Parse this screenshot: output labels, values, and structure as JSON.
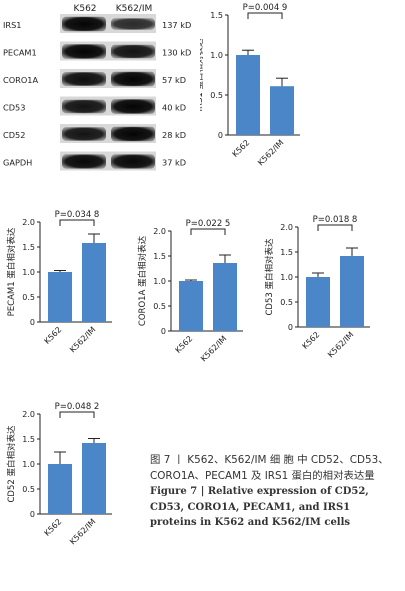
{
  "blot": {
    "lane_labels": [
      "K562",
      "K562/IM"
    ],
    "rows": [
      {
        "protein": "IRS1",
        "size": "137 kD",
        "intensity": [
          0.95,
          0.55
        ]
      },
      {
        "protein": "PECAM1",
        "size": "130 kD",
        "intensity": [
          0.95,
          0.8
        ]
      },
      {
        "protein": "CORO1A",
        "size": "57 kD",
        "intensity": [
          0.85,
          0.95
        ]
      },
      {
        "protein": "CD53",
        "size": "40 kD",
        "intensity": [
          0.8,
          0.95
        ]
      },
      {
        "protein": "CD52",
        "size": "28 kD",
        "intensity": [
          0.8,
          0.95
        ]
      },
      {
        "protein": "GAPDH",
        "size": "37 kD",
        "intensity": [
          0.9,
          0.9
        ]
      }
    ]
  },
  "chart_data": [
    {
      "type": "bar",
      "categories": [
        "K562",
        "K562/IM"
      ],
      "values": [
        1.0,
        0.61
      ],
      "errors": [
        0.06,
        0.1
      ],
      "ylabel": "IRS1 蛋白相对表达",
      "p_label": "P=0.004 9",
      "ylim": [
        0,
        1.5
      ],
      "yticks": [
        "0",
        "0.5",
        "1.0",
        "1.5"
      ]
    },
    {
      "type": "bar",
      "categories": [
        "K562",
        "K562/IM"
      ],
      "values": [
        1.0,
        1.58
      ],
      "errors": [
        0.03,
        0.18
      ],
      "ylabel": "PECAM1 蛋白相对表达",
      "p_label": "P=0.034 8",
      "ylim": [
        0,
        2.0
      ],
      "yticks": [
        "0",
        "0.5",
        "1.0",
        "1.5",
        "2.0"
      ]
    },
    {
      "type": "bar",
      "categories": [
        "K562",
        "K562/IM"
      ],
      "values": [
        1.0,
        1.36
      ],
      "errors": [
        0.02,
        0.16
      ],
      "ylabel": "CORO1A 蛋白相对表达",
      "p_label": "P=0.022 5",
      "ylim": [
        0,
        2.0
      ],
      "yticks": [
        "0",
        "0.5",
        "1.0",
        "1.5",
        "2.0"
      ]
    },
    {
      "type": "bar",
      "categories": [
        "K562",
        "K562/IM"
      ],
      "values": [
        1.0,
        1.42
      ],
      "errors": [
        0.08,
        0.16
      ],
      "ylabel": "CD53 蛋白相对表达",
      "p_label": "P=0.018 8",
      "ylim": [
        0,
        2.0
      ],
      "yticks": [
        "0",
        "0.5",
        "1.0",
        "1.5",
        "2.0"
      ]
    },
    {
      "type": "bar",
      "categories": [
        "K562",
        "K562/IM"
      ],
      "values": [
        1.0,
        1.42
      ],
      "errors": [
        0.24,
        0.09
      ],
      "ylabel": "CD52 蛋白相对表达",
      "p_label": "P=0.048 2",
      "ylim": [
        0,
        2.0
      ],
      "yticks": [
        "0",
        "0.5",
        "1.0",
        "1.5",
        "2.0"
      ]
    }
  ],
  "colors": {
    "bar": "#4a86c8",
    "axis": "#222222"
  },
  "caption": {
    "cn": "图 7 丨 K562、K562/IM 细 胞 中 CD52、CD53、CORO1A、PECAM1 及 IRS1 蛋白的相对表达量",
    "en": "Figure 7 | Relative expression of CD52, CD53, CORO1A, PECAM1, and IRS1 proteins in K562 and K562/IM cells"
  }
}
